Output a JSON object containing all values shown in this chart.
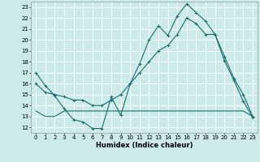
{
  "xlabel": "Humidex (Indice chaleur)",
  "bg_color": "#cceaea",
  "grid_color": "#ffffff",
  "line_color": "#1a6e6e",
  "xlim": [
    -0.5,
    23.5
  ],
  "ylim": [
    11.5,
    23.5
  ],
  "xticks": [
    0,
    1,
    2,
    3,
    4,
    5,
    6,
    7,
    8,
    9,
    10,
    11,
    12,
    13,
    14,
    15,
    16,
    17,
    18,
    19,
    20,
    21,
    22,
    23
  ],
  "yticks": [
    12,
    13,
    14,
    15,
    16,
    17,
    18,
    19,
    20,
    21,
    22,
    23
  ],
  "line1_x": [
    0,
    1,
    2,
    3,
    4,
    5,
    6,
    7,
    8,
    9,
    10,
    11,
    12,
    13,
    14,
    15,
    16,
    17,
    18,
    19,
    20,
    21,
    22,
    23
  ],
  "line1_y": [
    17.0,
    15.8,
    14.9,
    13.7,
    12.7,
    12.5,
    11.9,
    11.9,
    14.8,
    13.1,
    16.0,
    17.8,
    20.0,
    21.3,
    20.4,
    22.2,
    23.3,
    22.5,
    21.7,
    20.5,
    18.1,
    16.3,
    14.4,
    12.9
  ],
  "line2_x": [
    0,
    1,
    2,
    3,
    4,
    5,
    6,
    7,
    8,
    9,
    10,
    11,
    12,
    13,
    14,
    15,
    16,
    17,
    18,
    19,
    20,
    21,
    22,
    23
  ],
  "line2_y": [
    16.0,
    15.2,
    15.0,
    14.8,
    14.5,
    14.5,
    14.0,
    14.0,
    14.5,
    15.0,
    16.0,
    17.0,
    18.0,
    19.0,
    19.5,
    20.5,
    22.0,
    21.5,
    20.5,
    20.5,
    18.5,
    16.5,
    15.0,
    13.0
  ],
  "line3_x": [
    0,
    1,
    2,
    3,
    4,
    5,
    6,
    7,
    8,
    9,
    10,
    11,
    12,
    13,
    14,
    15,
    16,
    17,
    18,
    19,
    20,
    21,
    22,
    23
  ],
  "line3_y": [
    13.5,
    13.0,
    13.0,
    13.5,
    13.5,
    13.5,
    13.5,
    13.5,
    13.5,
    13.5,
    13.5,
    13.5,
    13.5,
    13.5,
    13.5,
    13.5,
    13.5,
    13.5,
    13.5,
    13.5,
    13.5,
    13.5,
    13.5,
    13.0
  ],
  "tick_fontsize": 5,
  "xlabel_fontsize": 6,
  "linewidth": 0.8,
  "marker_size": 2.5
}
